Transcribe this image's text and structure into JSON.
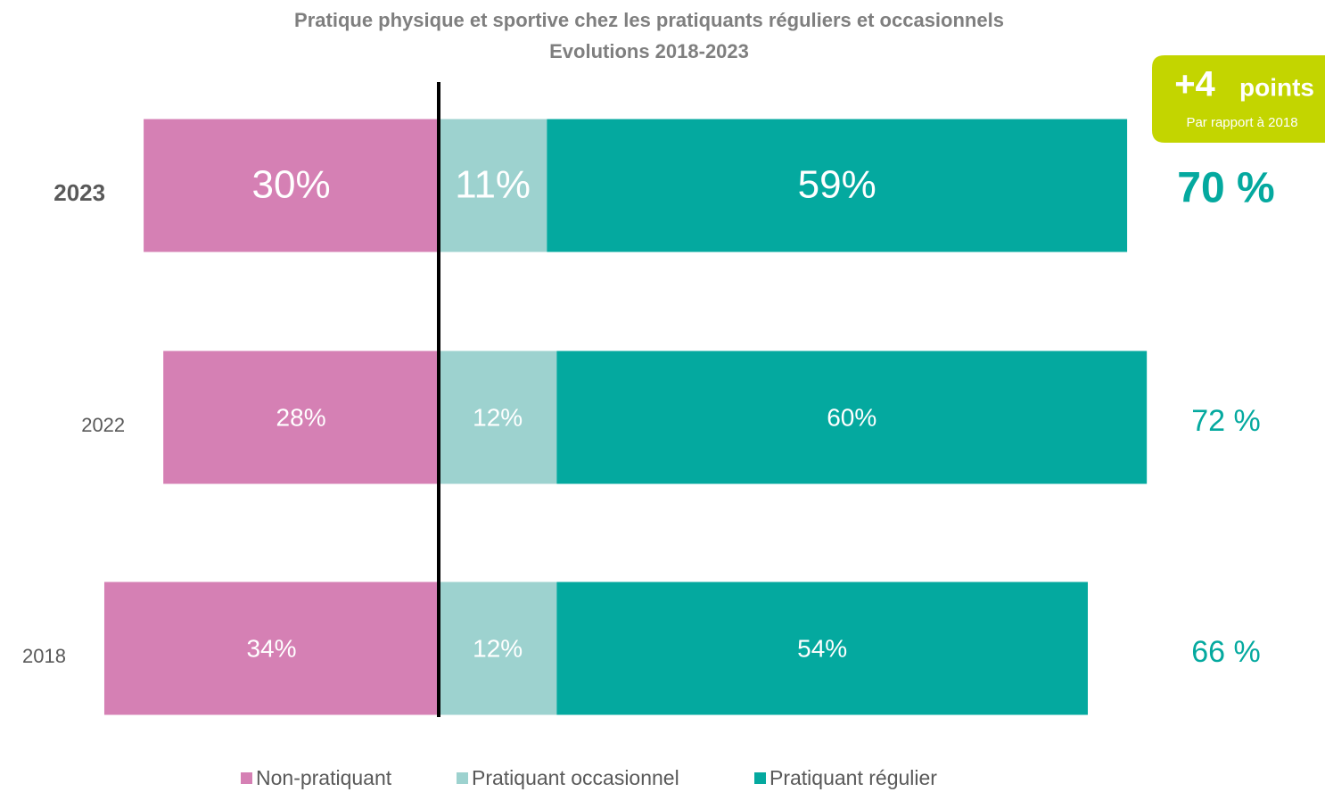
{
  "chart_data": {
    "type": "diverging_bar",
    "title": "Pratique physique et sportive chez les pratiquants réguliers et occasionnels",
    "subtitle": "Evolutions 2018-2023",
    "categories": [
      "2023",
      "2022",
      "2018"
    ],
    "series": [
      {
        "name": "Non-pratiquant",
        "color": "#D580B4",
        "side": "left",
        "values": [
          30,
          28,
          34
        ],
        "value_labels": [
          "30%",
          "28%",
          "34%"
        ]
      },
      {
        "name": "Pratiquant occasionnel",
        "color": "#9DD2CF",
        "side": "right",
        "values": [
          11,
          12,
          12
        ],
        "value_labels": [
          "11%",
          "12%",
          "12%"
        ]
      },
      {
        "name": "Pratiquant régulier",
        "color": "#04A99F",
        "side": "right",
        "values": [
          59,
          60,
          54
        ],
        "value_labels": [
          "59%",
          "60%",
          "54%"
        ]
      }
    ],
    "totals": {
      "color": "#04A99F",
      "values": [
        70,
        72,
        66
      ],
      "value_labels": [
        "70 %",
        "72 %",
        "66 %"
      ]
    },
    "badge": {
      "headline": "+4",
      "unit": "points",
      "note": "Par rapport à 2018",
      "color": "#C3D500"
    }
  }
}
